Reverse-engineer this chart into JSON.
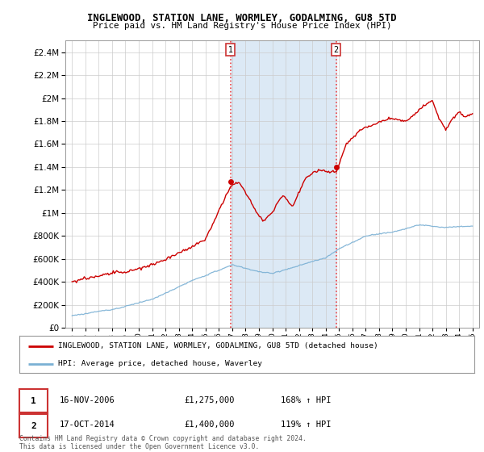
{
  "title": "INGLEWOOD, STATION LANE, WORMLEY, GODALMING, GU8 5TD",
  "subtitle": "Price paid vs. HM Land Registry's House Price Index (HPI)",
  "legend_line1": "INGLEWOOD, STATION LANE, WORMLEY, GODALMING, GU8 5TD (detached house)",
  "legend_line2": "HPI: Average price, detached house, Waverley",
  "sale1_date": "16-NOV-2006",
  "sale1_price": 1275000,
  "sale1_label": "168% ↑ HPI",
  "sale1_x": 2006.88,
  "sale2_date": "17-OCT-2014",
  "sale2_price": 1400000,
  "sale2_label": "119% ↑ HPI",
  "sale2_x": 2014.79,
  "red_color": "#cc0000",
  "blue_color": "#7ab0d4",
  "shade_color": "#dce9f5",
  "background_color": "#ffffff",
  "grid_color": "#cccccc",
  "ylim": [
    0,
    2500000
  ],
  "xlim": [
    1994.5,
    2025.5
  ],
  "footer": "Contains HM Land Registry data © Crown copyright and database right 2024.\nThis data is licensed under the Open Government Licence v3.0."
}
